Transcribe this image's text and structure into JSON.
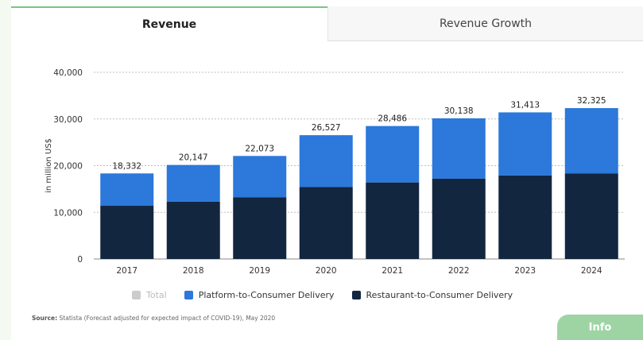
{
  "tabs": [
    {
      "label": "Revenue",
      "active": true
    },
    {
      "label": "Revenue Growth",
      "active": false
    }
  ],
  "chart_data": {
    "type": "bar",
    "stacked": true,
    "categories": [
      "2017",
      "2018",
      "2019",
      "2020",
      "2021",
      "2022",
      "2023",
      "2024"
    ],
    "series": [
      {
        "name": "Restaurant-to-Consumer Delivery",
        "color": "#12263f",
        "values": [
          11400,
          12300,
          13200,
          15400,
          16400,
          17200,
          17900,
          18300
        ]
      },
      {
        "name": "Platform-to-Consumer Delivery",
        "color": "#2c78db",
        "values": [
          6932,
          7847,
          8873,
          11127,
          12086,
          12938,
          13513,
          14025
        ]
      }
    ],
    "totals": [
      "18,332",
      "20,147",
      "22,073",
      "26,527",
      "28,486",
      "30,138",
      "31,413",
      "32,325"
    ],
    "ylabel": "in million US$",
    "ylim": [
      0,
      40000
    ],
    "yticks": [
      0,
      10000,
      20000,
      30000,
      40000
    ],
    "ytick_labels": [
      "0",
      "10,000",
      "20,000",
      "30,000",
      "40,000"
    ],
    "grid": true
  },
  "legend": [
    {
      "label": "Total",
      "color": "#cccccc",
      "disabled": true
    },
    {
      "label": "Platform-to-Consumer Delivery",
      "color": "#2c78db",
      "disabled": false
    },
    {
      "label": "Restaurant-to-Consumer Delivery",
      "color": "#12263f",
      "disabled": false
    }
  ],
  "source": {
    "label": "Source:",
    "text": "Statista (Forecast adjusted for expected impact of COVID-19), May 2020"
  },
  "info_button": "Info"
}
